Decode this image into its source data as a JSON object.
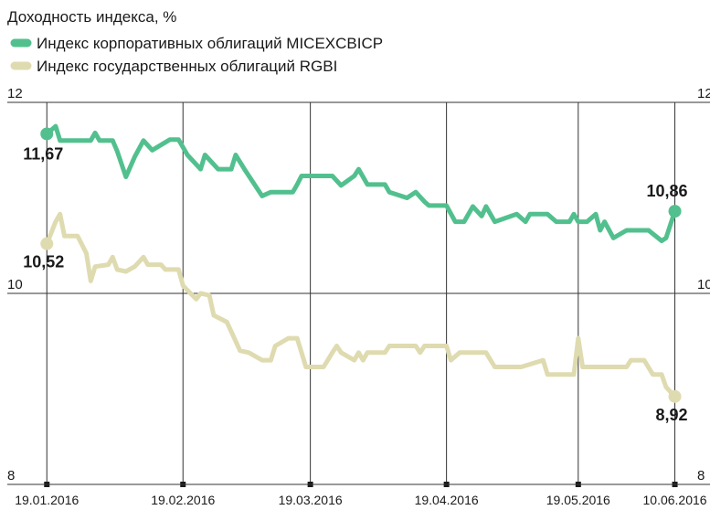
{
  "chart_data": {
    "type": "line",
    "title": "Доходность индекса, %",
    "xlim": [
      "2016-01-10",
      "2016-06-18"
    ],
    "ylim": [
      8,
      12
    ],
    "yticks": [
      8,
      10,
      12
    ],
    "xticks": [
      {
        "value": "2016-01-19",
        "label": "19.01.2016"
      },
      {
        "value": "2016-02-19",
        "label": "19.02.2016"
      },
      {
        "value": "2016-03-19",
        "label": "19.03.2016"
      },
      {
        "value": "2016-04-19",
        "label": "19.04.2016"
      },
      {
        "value": "2016-05-19",
        "label": "19.05.2016"
      },
      {
        "value": "2016-06-10",
        "label": "10.06.2016"
      }
    ],
    "grid": true,
    "series": [
      {
        "name": "Индекс корпоративных облигаций MICEXCBICP",
        "color": "#52c08e",
        "x": [
          "2016-01-19",
          "2016-01-21",
          "2016-01-22",
          "2016-01-29",
          "2016-01-30",
          "2016-01-31",
          "2016-02-03",
          "2016-02-04",
          "2016-02-06",
          "2016-02-08",
          "2016-02-10",
          "2016-02-12",
          "2016-02-16",
          "2016-02-18",
          "2016-02-20",
          "2016-02-23",
          "2016-02-24",
          "2016-02-27",
          "2016-03-01",
          "2016-03-02",
          "2016-03-04",
          "2016-03-08",
          "2016-03-10",
          "2016-03-15",
          "2016-03-16",
          "2016-03-17",
          "2016-03-24",
          "2016-03-26",
          "2016-03-29",
          "2016-03-30",
          "2016-04-01",
          "2016-04-05",
          "2016-04-06",
          "2016-04-10",
          "2016-04-12",
          "2016-04-14",
          "2016-04-15",
          "2016-04-19",
          "2016-04-21",
          "2016-04-23",
          "2016-04-25",
          "2016-04-27",
          "2016-04-28",
          "2016-04-30",
          "2016-05-05",
          "2016-05-07",
          "2016-05-08",
          "2016-05-12",
          "2016-05-14",
          "2016-05-17",
          "2016-05-18",
          "2016-05-19",
          "2016-05-21",
          "2016-05-23",
          "2016-05-24",
          "2016-05-25",
          "2016-05-27",
          "2016-05-30",
          "2016-06-04",
          "2016-06-07",
          "2016-06-08",
          "2016-06-10"
        ],
        "values": [
          11.67,
          11.75,
          11.6,
          11.6,
          11.68,
          11.6,
          11.6,
          11.49,
          11.22,
          11.43,
          11.6,
          11.5,
          11.61,
          11.61,
          11.45,
          11.3,
          11.45,
          11.3,
          11.3,
          11.45,
          11.3,
          11.02,
          11.06,
          11.06,
          11.14,
          11.23,
          11.23,
          11.13,
          11.23,
          11.3,
          11.14,
          11.14,
          11.06,
          11.0,
          11.06,
          10.96,
          10.92,
          10.92,
          10.75,
          10.75,
          10.91,
          10.81,
          10.91,
          10.75,
          10.83,
          10.75,
          10.83,
          10.83,
          10.75,
          10.75,
          10.83,
          10.75,
          10.75,
          10.83,
          10.66,
          10.75,
          10.58,
          10.66,
          10.66,
          10.55,
          10.58,
          10.86
        ],
        "value_labels": [
          "11,67",
          null,
          null,
          null,
          null,
          null,
          null,
          null,
          null,
          null,
          null,
          null,
          null,
          null,
          null,
          null,
          null,
          null,
          null,
          null,
          null,
          null,
          null,
          null,
          null,
          null,
          null,
          null,
          null,
          null,
          null,
          null,
          null,
          null,
          null,
          null,
          null,
          null,
          null,
          null,
          null,
          null,
          null,
          null,
          null,
          null,
          null,
          null,
          null,
          null,
          null,
          null,
          null,
          null,
          null,
          null,
          null,
          null,
          null,
          null,
          null,
          "10,86"
        ]
      },
      {
        "name": "Индекс государственных облигаций RGBI",
        "color": "#dfdbb0",
        "x": [
          "2016-01-19",
          "2016-01-21",
          "2016-01-22",
          "2016-01-23",
          "2016-01-26",
          "2016-01-28",
          "2016-01-29",
          "2016-01-30",
          "2016-02-02",
          "2016-02-03",
          "2016-02-04",
          "2016-02-06",
          "2016-02-08",
          "2016-02-10",
          "2016-02-11",
          "2016-02-14",
          "2016-02-15",
          "2016-02-18",
          "2016-02-19",
          "2016-02-22",
          "2016-02-23",
          "2016-02-25",
          "2016-02-26",
          "2016-02-29",
          "2016-03-01",
          "2016-03-03",
          "2016-03-05",
          "2016-03-08",
          "2016-03-10",
          "2016-03-11",
          "2016-03-14",
          "2016-03-16",
          "2016-03-18",
          "2016-03-22",
          "2016-03-24",
          "2016-03-25",
          "2016-03-26",
          "2016-03-29",
          "2016-03-30",
          "2016-03-31",
          "2016-04-01",
          "2016-04-05",
          "2016-04-06",
          "2016-04-12",
          "2016-04-13",
          "2016-04-14",
          "2016-04-19",
          "2016-04-20",
          "2016-04-22",
          "2016-04-28",
          "2016-04-30",
          "2016-05-06",
          "2016-05-11",
          "2016-05-12",
          "2016-05-18",
          "2016-05-19",
          "2016-05-20",
          "2016-05-30",
          "2016-05-31",
          "2016-06-03",
          "2016-06-05",
          "2016-06-07",
          "2016-06-08",
          "2016-06-10"
        ],
        "values": [
          10.52,
          10.75,
          10.83,
          10.6,
          10.6,
          10.42,
          10.13,
          10.28,
          10.3,
          10.38,
          10.25,
          10.23,
          10.28,
          10.38,
          10.3,
          10.3,
          10.25,
          10.25,
          10.08,
          9.94,
          10.0,
          9.98,
          9.77,
          9.7,
          9.6,
          9.4,
          9.38,
          9.3,
          9.3,
          9.45,
          9.53,
          9.53,
          9.23,
          9.23,
          9.38,
          9.45,
          9.38,
          9.3,
          9.38,
          9.3,
          9.38,
          9.38,
          9.45,
          9.45,
          9.38,
          9.45,
          9.45,
          9.3,
          9.38,
          9.38,
          9.23,
          9.23,
          9.3,
          9.15,
          9.15,
          9.53,
          9.23,
          9.23,
          9.3,
          9.3,
          9.15,
          9.15,
          9.02,
          8.92
        ],
        "value_labels": [
          "10,52",
          null,
          null,
          null,
          null,
          null,
          null,
          null,
          null,
          null,
          null,
          null,
          null,
          null,
          null,
          null,
          null,
          null,
          null,
          null,
          null,
          null,
          null,
          null,
          null,
          null,
          null,
          null,
          null,
          null,
          null,
          null,
          null,
          null,
          null,
          null,
          null,
          null,
          null,
          null,
          null,
          null,
          null,
          null,
          null,
          null,
          null,
          null,
          null,
          null,
          null,
          null,
          null,
          null,
          null,
          null,
          null,
          null,
          null,
          null,
          null,
          null,
          null,
          "8,92"
        ]
      }
    ]
  }
}
